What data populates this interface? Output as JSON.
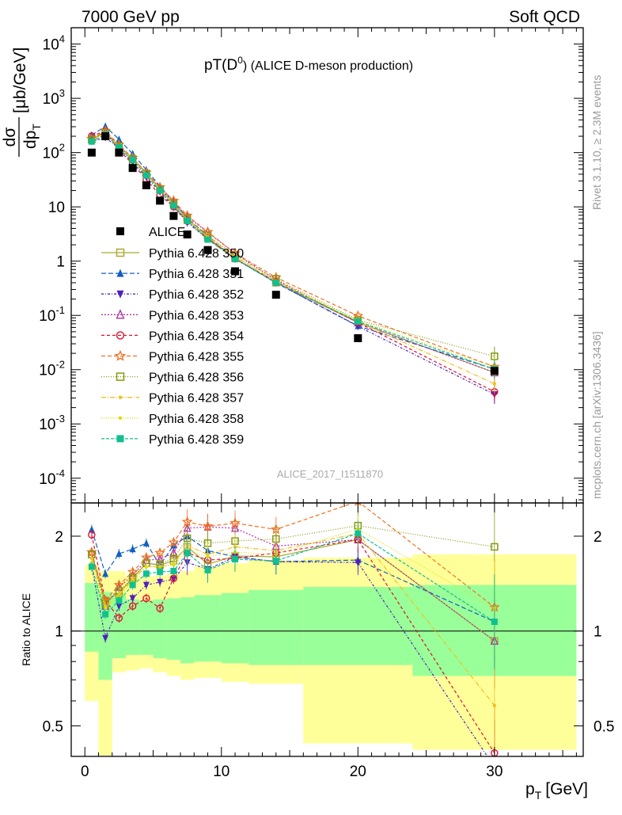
{
  "header": {
    "left": "7000 GeV pp",
    "right": "Soft QCD"
  },
  "side_labels": {
    "rivet": "Rivet 3.1.10, ≥ 2.3M events",
    "mcplots": "mcplots.cern.ch [arXiv:1306.3436]"
  },
  "plot": {
    "title_pre": "pT(D",
    "title_sup": "0",
    "title_post": ") (ALICE D-meson production)",
    "watermark": "ALICE_2017_I1511870",
    "ylabel_num": "dσ",
    "ylabel_den": "dp",
    "ylabel_den_sub": "T",
    "ylabel_unit": "[μb/GeV]",
    "ratio_ylabel": "Ratio to ALICE",
    "xlabel": "p",
    "xlabel_sub": "T",
    "xlabel_unit": "[GeV]"
  },
  "colors": {
    "data": "#000000",
    "band_inner": "#99ff99",
    "band_outer": "#ffff99",
    "s350": "#aaaa33",
    "s351": "#1060c0",
    "s352": "#5020c0",
    "s353": "#b030a0",
    "s354": "#dd1030",
    "s355": "#f07020",
    "s356": "#889910",
    "s357": "#f0c020",
    "s358": "#dddd10",
    "s359": "#10c090"
  },
  "chart_data": [
    {
      "type": "scatter",
      "panel": "main",
      "yscale": "log",
      "xlim": [
        -1,
        36.5
      ],
      "ylim": [
        3.5e-05,
        20000
      ],
      "x_ticks": [
        0,
        10,
        20,
        30
      ],
      "y_ticks": [
        {
          "v": 0.0001,
          "b": "10",
          "e": "-4"
        },
        {
          "v": 0.001,
          "b": "10",
          "e": "-3"
        },
        {
          "v": 0.01,
          "b": "10",
          "e": "-2"
        },
        {
          "v": 0.1,
          "b": "10",
          "e": "-1"
        },
        {
          "v": 1,
          "b": "1",
          "e": ""
        },
        {
          "v": 10,
          "b": "10",
          "e": ""
        },
        {
          "v": 100,
          "b": "10",
          "e": "2"
        },
        {
          "v": 1000,
          "b": "10",
          "e": "3"
        },
        {
          "v": 10000,
          "b": "10",
          "e": "4"
        }
      ],
      "x": [
        0.5,
        1.5,
        2.5,
        3.5,
        4.5,
        5.5,
        6.5,
        7.5,
        9,
        11,
        14,
        20,
        30
      ],
      "data": {
        "name": "ALICE",
        "values": [
          100,
          200,
          100,
          52,
          25,
          13,
          6.8,
          3.1,
          1.6,
          0.65,
          0.24,
          0.038,
          0.0095
        ]
      },
      "series": [
        {
          "name": "Pythia 6.428 350",
          "marker": "square-open",
          "dash": "solid",
          "color_key": "s350",
          "values": [
            175,
            235,
            130,
            76,
            41,
            21,
            11.5,
            5.7,
            2.65,
            1.12,
            0.4,
            0.074,
            0.0089
          ]
        },
        {
          "name": "Pythia 6.428 351",
          "marker": "triangle-up",
          "dash": "6,3",
          "color_key": "s351",
          "values": [
            210,
            305,
            175,
            95,
            48,
            24,
            12.5,
            6.2,
            2.9,
            1.1,
            0.4,
            0.064,
            0.0102
          ]
        },
        {
          "name": "Pythia 6.428 352",
          "marker": "triangle-down",
          "dash": "3,2,1,2",
          "color_key": "s352",
          "values": [
            160,
            190,
            120,
            66,
            35,
            19,
            10,
            5.1,
            2.55,
            1.12,
            0.4,
            0.063,
            0.0035
          ]
        },
        {
          "name": "Pythia 6.428 353",
          "marker": "triangle-open",
          "dash": "2,2",
          "color_key": "s353",
          "values": [
            178,
            238,
            133,
            78,
            42,
            22,
            12,
            6.6,
            3.4,
            1.38,
            0.45,
            0.074,
            0.0088
          ]
        },
        {
          "name": "Pythia 6.428 354",
          "marker": "circle-open",
          "dash": "4,3",
          "color_key": "s354",
          "values": [
            202,
            250,
            110,
            62,
            32,
            16.5,
            10,
            5.5,
            2.7,
            1.1,
            0.42,
            0.074,
            0.0039
          ]
        },
        {
          "name": "Pythia 6.428 355",
          "marker": "star-open",
          "dash": "5,3",
          "color_key": "s355",
          "values": [
            178,
            250,
            140,
            80,
            43,
            23,
            13,
            6.9,
            3.45,
            1.4,
            0.5,
            0.098,
            0.0113
          ]
        },
        {
          "name": "Pythia 6.428 356",
          "marker": "square-open",
          "dash": "1,2",
          "color_key": "s356",
          "values": [
            175,
            230,
            132,
            77,
            41,
            21,
            11.5,
            6.1,
            3.0,
            1.25,
            0.47,
            0.082,
            0.0176
          ]
        },
        {
          "name": "Pythia 6.428 357",
          "marker": "dot",
          "dash": "6,2,1,2",
          "color_key": "s357",
          "values": [
            170,
            230,
            130,
            76,
            40,
            21,
            11,
            5.8,
            2.8,
            1.2,
            0.43,
            0.077,
            0.0055
          ]
        },
        {
          "name": "Pythia 6.428 358",
          "marker": "dot",
          "dash": "1,2",
          "color_key": "s358",
          "values": [
            165,
            225,
            128,
            75,
            40,
            21,
            11,
            5.6,
            2.75,
            1.15,
            0.42,
            0.08,
            0.0112
          ]
        },
        {
          "name": "Pythia 6.428 359",
          "marker": "square",
          "dash": "4,2",
          "color_key": "s359",
          "values": [
            160,
            215,
            125,
            73,
            38,
            20,
            10.5,
            5.5,
            2.5,
            1.1,
            0.4,
            0.077,
            0.0102
          ]
        }
      ]
    },
    {
      "type": "scatter",
      "panel": "ratio",
      "yscale": "log",
      "xlim": [
        -1,
        36.5
      ],
      "ylim": [
        0.4,
        2.55
      ],
      "y_ticks": [
        0.5,
        1,
        2
      ],
      "x": [
        0.5,
        1.5,
        2.5,
        3.5,
        4.5,
        5.5,
        6.5,
        7.5,
        9,
        11,
        14,
        20,
        30
      ],
      "band_edges": [
        0,
        1,
        2,
        3,
        4,
        5,
        6,
        7,
        8,
        10,
        12,
        16,
        24,
        36
      ],
      "band_inner": [
        [
          0.86,
          1.42
        ],
        [
          0.7,
          1.33
        ],
        [
          0.82,
          1.3
        ],
        [
          0.84,
          1.26
        ],
        [
          0.84,
          1.25
        ],
        [
          0.82,
          1.26
        ],
        [
          0.81,
          1.27
        ],
        [
          0.79,
          1.28
        ],
        [
          0.8,
          1.3
        ],
        [
          0.79,
          1.32
        ],
        [
          0.78,
          1.35
        ],
        [
          0.78,
          1.38
        ],
        [
          0.72,
          1.4
        ]
      ],
      "band_outer": [
        [
          0.6,
          1.62
        ],
        [
          0.38,
          1.55
        ],
        [
          0.74,
          1.55
        ],
        [
          0.75,
          1.5
        ],
        [
          0.76,
          1.49
        ],
        [
          0.74,
          1.5
        ],
        [
          0.72,
          1.52
        ],
        [
          0.7,
          1.55
        ],
        [
          0.71,
          1.6
        ],
        [
          0.69,
          1.64
        ],
        [
          0.68,
          1.68
        ],
        [
          0.44,
          1.71
        ],
        [
          0.42,
          1.75
        ]
      ],
      "series": [
        {
          "name": "Pythia 6.428 350",
          "values": [
            1.75,
            1.25,
            1.32,
            1.47,
            1.64,
            1.62,
            1.67,
            1.85,
            1.63,
            1.73,
            1.72,
            1.95,
            0.93
          ]
        },
        {
          "name": "Pythia 6.428 351",
          "values": [
            2.1,
            1.52,
            1.76,
            1.82,
            1.9,
            1.62,
            1.87,
            2.0,
            1.8,
            1.72,
            1.66,
            1.68,
            1.07
          ]
        },
        {
          "name": "Pythia 6.428 352",
          "values": [
            1.6,
            0.95,
            1.2,
            1.27,
            1.4,
            1.43,
            1.46,
            1.65,
            1.57,
            1.72,
            1.66,
            1.65,
            0.37
          ]
        },
        {
          "name": "Pythia 6.428 353",
          "values": [
            1.78,
            1.2,
            1.38,
            1.5,
            1.68,
            1.69,
            1.77,
            2.12,
            2.14,
            2.12,
            1.86,
            1.95,
            0.93
          ]
        },
        {
          "name": "Pythia 6.428 354",
          "values": [
            2.02,
            1.25,
            1.1,
            1.2,
            1.27,
            1.18,
            1.47,
            1.77,
            1.68,
            1.7,
            1.77,
            1.95,
            0.41
          ]
        },
        {
          "name": "Pythia 6.428 355",
          "values": [
            1.78,
            1.25,
            1.4,
            1.54,
            1.71,
            1.77,
            1.91,
            2.22,
            2.15,
            2.2,
            2.1,
            2.58,
            1.19
          ]
        },
        {
          "name": "Pythia 6.428 356",
          "values": [
            1.75,
            1.22,
            1.34,
            1.48,
            1.64,
            1.63,
            1.7,
            1.97,
            1.9,
            1.93,
            1.96,
            2.16,
            1.85
          ]
        },
        {
          "name": "Pythia 6.428 357",
          "values": [
            1.7,
            1.2,
            1.3,
            1.46,
            1.6,
            1.6,
            1.63,
            1.87,
            1.75,
            1.85,
            1.8,
            2.04,
            0.58
          ]
        },
        {
          "name": "Pythia 6.428 358",
          "values": [
            1.65,
            1.18,
            1.28,
            1.44,
            1.6,
            1.6,
            1.62,
            1.8,
            1.72,
            1.78,
            1.75,
            2.11,
            1.18
          ]
        },
        {
          "name": "Pythia 6.428 359",
          "values": [
            1.6,
            1.13,
            1.25,
            1.4,
            1.52,
            1.54,
            1.55,
            1.77,
            1.56,
            1.69,
            1.67,
            2.04,
            1.07
          ]
        }
      ]
    }
  ]
}
